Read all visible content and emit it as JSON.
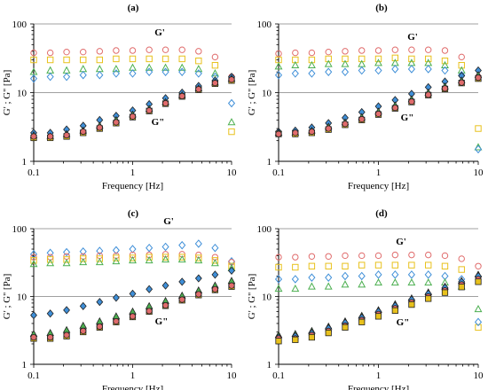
{
  "figure": {
    "panels": [
      "(a)",
      "(b)",
      "(c)",
      "(d)"
    ]
  },
  "colors": {
    "red": "#e06c6c",
    "yellow": "#e8c11c",
    "green": "#4caf50",
    "blue": "#3f8fd8",
    "dark": "#303030",
    "grid": "#a0a0a0"
  },
  "chart_data": [
    {
      "type": "scatter",
      "panel": "(a)",
      "xlabel": "Frequency [Hz]",
      "ylabel": "G' ; G'' [Pa]",
      "xscale": "log",
      "yscale": "log",
      "xlim": [
        0.1,
        10
      ],
      "ylim": [
        1,
        100
      ],
      "x_ticks": [
        "0.1",
        "1",
        "10"
      ],
      "y_ticks": [
        "1",
        "10",
        "100"
      ],
      "annotations": [
        "G'",
        "G\""
      ],
      "x": [
        0.1,
        0.147,
        0.215,
        0.316,
        0.464,
        0.681,
        1,
        1.47,
        2.15,
        3.16,
        4.64,
        6.81,
        10
      ],
      "series": [
        {
          "variable": "G'",
          "color": "red",
          "marker": "circle",
          "values": [
            38,
            38,
            39,
            39,
            40,
            41,
            41,
            42,
            42,
            42,
            40,
            33,
            17
          ]
        },
        {
          "variable": "G'",
          "color": "yellow",
          "marker": "square",
          "values": [
            30,
            30,
            30,
            30,
            30,
            31,
            31,
            31,
            31,
            31,
            29,
            25,
            2.7
          ]
        },
        {
          "variable": "G'",
          "color": "green",
          "marker": "triangle",
          "values": [
            20,
            21,
            21,
            22,
            22,
            22,
            23,
            23,
            23,
            23,
            22,
            19,
            3.7
          ]
        },
        {
          "variable": "G'",
          "color": "blue",
          "marker": "diamond",
          "values": [
            16,
            17,
            17,
            18,
            18,
            19,
            19,
            20,
            20,
            20,
            19,
            17,
            7
          ]
        },
        {
          "variable": "G\"",
          "color": "blue",
          "marker": "diamond-filled",
          "values": [
            2.6,
            2.6,
            2.9,
            3.3,
            4.0,
            4.6,
            5.5,
            6.8,
            8.3,
            10,
            12.5,
            15,
            17
          ]
        },
        {
          "variable": "G\"",
          "color": "green",
          "marker": "triangle-filled",
          "values": [
            2.4,
            2.3,
            2.5,
            2.8,
            3.3,
            4.0,
            4.8,
            5.8,
            7.3,
            9.2,
            11.5,
            14,
            16
          ]
        },
        {
          "variable": "G\"",
          "color": "yellow",
          "marker": "square-filled",
          "values": [
            2.2,
            2.2,
            2.3,
            2.6,
            3.0,
            3.6,
            4.4,
            5.4,
            6.9,
            8.8,
            11,
            13.5,
            15
          ]
        },
        {
          "variable": "G\"",
          "color": "red",
          "marker": "circle-filled",
          "values": [
            2.3,
            2.3,
            2.4,
            2.7,
            3.1,
            3.7,
            4.5,
            5.5,
            7.0,
            8.9,
            11.2,
            13.8,
            15.5
          ]
        }
      ]
    },
    {
      "type": "scatter",
      "panel": "(b)",
      "xlabel": "Frequency [Hz]",
      "ylabel": "G' ; G'' [Pa]",
      "xscale": "log",
      "yscale": "log",
      "xlim": [
        0.1,
        10
      ],
      "ylim": [
        1,
        100
      ],
      "x_ticks": [
        "0.1",
        "1",
        "10"
      ],
      "y_ticks": [
        "1",
        "10",
        "100"
      ],
      "annotations": [
        "G'",
        "G\""
      ],
      "x": [
        0.1,
        0.147,
        0.215,
        0.316,
        0.464,
        0.681,
        1,
        1.47,
        2.15,
        3.16,
        4.64,
        6.81,
        10
      ],
      "series": [
        {
          "variable": "G'",
          "color": "red",
          "marker": "circle",
          "values": [
            37,
            38,
            38,
            39,
            40,
            41,
            41,
            42,
            42,
            42,
            41,
            33,
            17
          ]
        },
        {
          "variable": "G'",
          "color": "yellow",
          "marker": "square",
          "values": [
            30,
            30,
            30,
            31,
            31,
            31,
            31,
            32,
            31,
            31,
            29,
            25,
            3
          ]
        },
        {
          "variable": "G'",
          "color": "green",
          "marker": "triangle",
          "values": [
            24,
            25,
            25,
            26,
            26,
            26,
            27,
            27,
            27,
            27,
            25,
            21,
            1.6
          ]
        },
        {
          "variable": "G'",
          "color": "blue",
          "marker": "diamond",
          "values": [
            18,
            19,
            19,
            20,
            20,
            21,
            21,
            22,
            22,
            22,
            21,
            18,
            1.5
          ]
        },
        {
          "variable": "G\"",
          "color": "blue",
          "marker": "diamond-filled",
          "values": [
            2.7,
            2.8,
            3.1,
            3.6,
            4.3,
            5.2,
            6.3,
            7.8,
            9.6,
            12,
            14.5,
            17.5,
            21
          ]
        },
        {
          "variable": "G\"",
          "color": "green",
          "marker": "triangle-filled",
          "values": [
            2.6,
            2.6,
            2.8,
            3.2,
            3.7,
            4.4,
            5.3,
            6.5,
            8.0,
            10,
            12.3,
            15,
            18
          ]
        },
        {
          "variable": "G\"",
          "color": "yellow",
          "marker": "square-filled",
          "values": [
            2.5,
            2.5,
            2.6,
            2.9,
            3.4,
            4.0,
            4.8,
            5.9,
            7.3,
            9.2,
            11.3,
            13.8,
            16
          ]
        },
        {
          "variable": "G\"",
          "color": "red",
          "marker": "circle-filled",
          "values": [
            2.5,
            2.6,
            2.7,
            3.0,
            3.5,
            4.1,
            4.9,
            6.0,
            7.4,
            9.3,
            11.5,
            14,
            16.5
          ]
        }
      ]
    },
    {
      "type": "scatter",
      "panel": "(c)",
      "xlabel": "Frequency [Hz]",
      "ylabel": "G' ; G'' [Pa]",
      "xscale": "log",
      "yscale": "log",
      "xlim": [
        0.1,
        10
      ],
      "ylim": [
        1,
        100
      ],
      "x_ticks": [
        "0.1",
        "1",
        "10"
      ],
      "y_ticks": [
        "1",
        "10",
        "100"
      ],
      "annotations": [
        "G'",
        "G\""
      ],
      "x": [
        0.1,
        0.147,
        0.215,
        0.316,
        0.464,
        0.681,
        1,
        1.47,
        2.15,
        3.16,
        4.64,
        6.81,
        10
      ],
      "series": [
        {
          "variable": "G'",
          "color": "blue",
          "marker": "diamond",
          "values": [
            42,
            44,
            45,
            46,
            47,
            48,
            50,
            52,
            54,
            57,
            60,
            52,
            33
          ]
        },
        {
          "variable": "G'",
          "color": "red",
          "marker": "circle",
          "values": [
            38,
            38,
            39,
            39,
            40,
            40,
            41,
            41,
            42,
            42,
            41,
            38,
            32
          ]
        },
        {
          "variable": "G'",
          "color": "yellow",
          "marker": "square",
          "values": [
            34,
            35,
            35,
            36,
            36,
            37,
            37,
            38,
            38,
            38,
            37,
            34,
            28
          ]
        },
        {
          "variable": "G'",
          "color": "green",
          "marker": "triangle",
          "values": [
            30,
            31,
            31,
            32,
            32,
            33,
            34,
            34,
            35,
            35,
            34,
            31,
            26
          ]
        },
        {
          "variable": "G\"",
          "color": "blue",
          "marker": "diamond-filled",
          "values": [
            5.3,
            5.6,
            6.3,
            7.2,
            8.3,
            9.6,
            11,
            12.8,
            14.5,
            16.5,
            18.5,
            21,
            24
          ]
        },
        {
          "variable": "G\"",
          "color": "green",
          "marker": "triangle-filled",
          "values": [
            2.8,
            2.9,
            3.2,
            3.7,
            4.3,
            5.1,
            6.0,
            7.2,
            8.6,
            10.3,
            12.3,
            14.5,
            17
          ]
        },
        {
          "variable": "G\"",
          "color": "yellow",
          "marker": "square-filled",
          "values": [
            2.4,
            2.4,
            2.6,
            3.0,
            3.5,
            4.2,
            5.0,
            6.0,
            7.3,
            8.8,
            10.5,
            12.5,
            14
          ]
        },
        {
          "variable": "G\"",
          "color": "red",
          "marker": "circle-filled",
          "values": [
            2.5,
            2.5,
            2.7,
            3.1,
            3.6,
            4.3,
            5.1,
            6.1,
            7.4,
            9.0,
            10.8,
            12.8,
            14.5
          ]
        }
      ]
    },
    {
      "type": "scatter",
      "panel": "(d)",
      "xlabel": "Frequency [Hz]",
      "ylabel": "G' ; G'' [Pa]",
      "xscale": "log",
      "yscale": "log",
      "xlim": [
        0.1,
        10
      ],
      "ylim": [
        1,
        100
      ],
      "x_ticks": [
        "0.1",
        "1",
        "10"
      ],
      "y_ticks": [
        "1",
        "10",
        "100"
      ],
      "annotations": [
        "G'",
        "G\""
      ],
      "x": [
        0.1,
        0.147,
        0.215,
        0.316,
        0.464,
        0.681,
        1,
        1.47,
        2.15,
        3.16,
        4.64,
        6.81,
        10
      ],
      "series": [
        {
          "variable": "G'",
          "color": "red",
          "marker": "circle",
          "values": [
            38,
            38,
            39,
            39,
            40,
            40,
            40,
            41,
            41,
            41,
            40,
            36,
            28
          ]
        },
        {
          "variable": "G'",
          "color": "yellow",
          "marker": "square",
          "values": [
            27,
            27,
            28,
            28,
            28,
            29,
            29,
            29,
            29,
            29,
            28,
            25,
            3.5
          ]
        },
        {
          "variable": "G'",
          "color": "blue",
          "marker": "diamond",
          "values": [
            18,
            18,
            19,
            19,
            20,
            20,
            21,
            21,
            21,
            21,
            20,
            18,
            4.2
          ]
        },
        {
          "variable": "G'",
          "color": "green",
          "marker": "triangle",
          "values": [
            13,
            13,
            14,
            14,
            15,
            15,
            16,
            16,
            16,
            16,
            16,
            14,
            6.5
          ]
        },
        {
          "variable": "G\"",
          "color": "green",
          "marker": "triangle-filled",
          "values": [
            2.7,
            2.8,
            3.1,
            3.6,
            4.3,
            5.2,
            6.3,
            7.7,
            9.4,
            11.5,
            14,
            17,
            21
          ]
        },
        {
          "variable": "G\"",
          "color": "blue",
          "marker": "diamond-filled",
          "values": [
            2.5,
            2.6,
            2.9,
            3.4,
            4.1,
            4.9,
            6.0,
            7.3,
            9.0,
            11,
            13.5,
            16.5,
            20
          ]
        },
        {
          "variable": "G\"",
          "color": "red",
          "marker": "circle-filled",
          "values": [
            2.4,
            2.4,
            2.7,
            3.1,
            3.7,
            4.5,
            5.5,
            6.7,
            8.2,
            10,
            12.3,
            15,
            18
          ]
        },
        {
          "variable": "G\"",
          "color": "yellow",
          "marker": "square-filled",
          "values": [
            2.2,
            2.3,
            2.5,
            2.9,
            3.5,
            4.2,
            5.1,
            6.2,
            7.6,
            9.3,
            11.4,
            13.8,
            16.5
          ]
        }
      ]
    }
  ]
}
